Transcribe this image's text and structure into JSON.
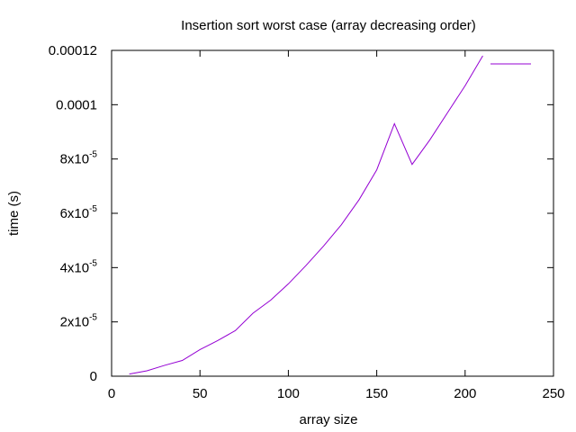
{
  "chart_data": {
    "type": "line",
    "title": "Insertion sort worst case (array decreasing order)",
    "xlabel": "array size",
    "ylabel": "time (s)",
    "xlim": [
      0,
      250
    ],
    "ylim": [
      0,
      0.00012
    ],
    "x_ticks": [
      {
        "value": 0,
        "label": "0"
      },
      {
        "value": 50,
        "label": "50"
      },
      {
        "value": 100,
        "label": "100"
      },
      {
        "value": 150,
        "label": "150"
      },
      {
        "value": 200,
        "label": "200"
      },
      {
        "value": 250,
        "label": "250"
      }
    ],
    "y_ticks": [
      {
        "value": 0,
        "mantissa": "0",
        "exp": ""
      },
      {
        "value": 2e-05,
        "mantissa": "2x10",
        "exp": "-5"
      },
      {
        "value": 4e-05,
        "mantissa": "4x10",
        "exp": "-5"
      },
      {
        "value": 6e-05,
        "mantissa": "6x10",
        "exp": "-5"
      },
      {
        "value": 8e-05,
        "mantissa": "8x10",
        "exp": "-5"
      },
      {
        "value": 0.0001,
        "mantissa": "0.0001",
        "exp": ""
      },
      {
        "value": 0.00012,
        "mantissa": "0.00012",
        "exp": ""
      }
    ],
    "grid": false,
    "legend": "top-right",
    "series": [
      {
        "color": "#9400d3",
        "x": [
          10,
          20,
          30,
          40,
          50,
          60,
          70,
          80,
          90,
          100,
          110,
          120,
          130,
          140,
          150,
          160,
          170,
          180,
          190,
          200,
          210
        ],
        "y": [
          8e-07,
          2e-06,
          4e-06,
          5.8e-06,
          9.8e-06,
          1.31e-05,
          1.68e-05,
          2.32e-05,
          2.8e-05,
          3.4e-05,
          4.08e-05,
          4.8e-05,
          5.58e-05,
          6.5e-05,
          7.6e-05,
          9.3e-05,
          7.8e-05,
          8.7e-05,
          9.7e-05,
          0.000107,
          0.000118
        ]
      }
    ]
  }
}
